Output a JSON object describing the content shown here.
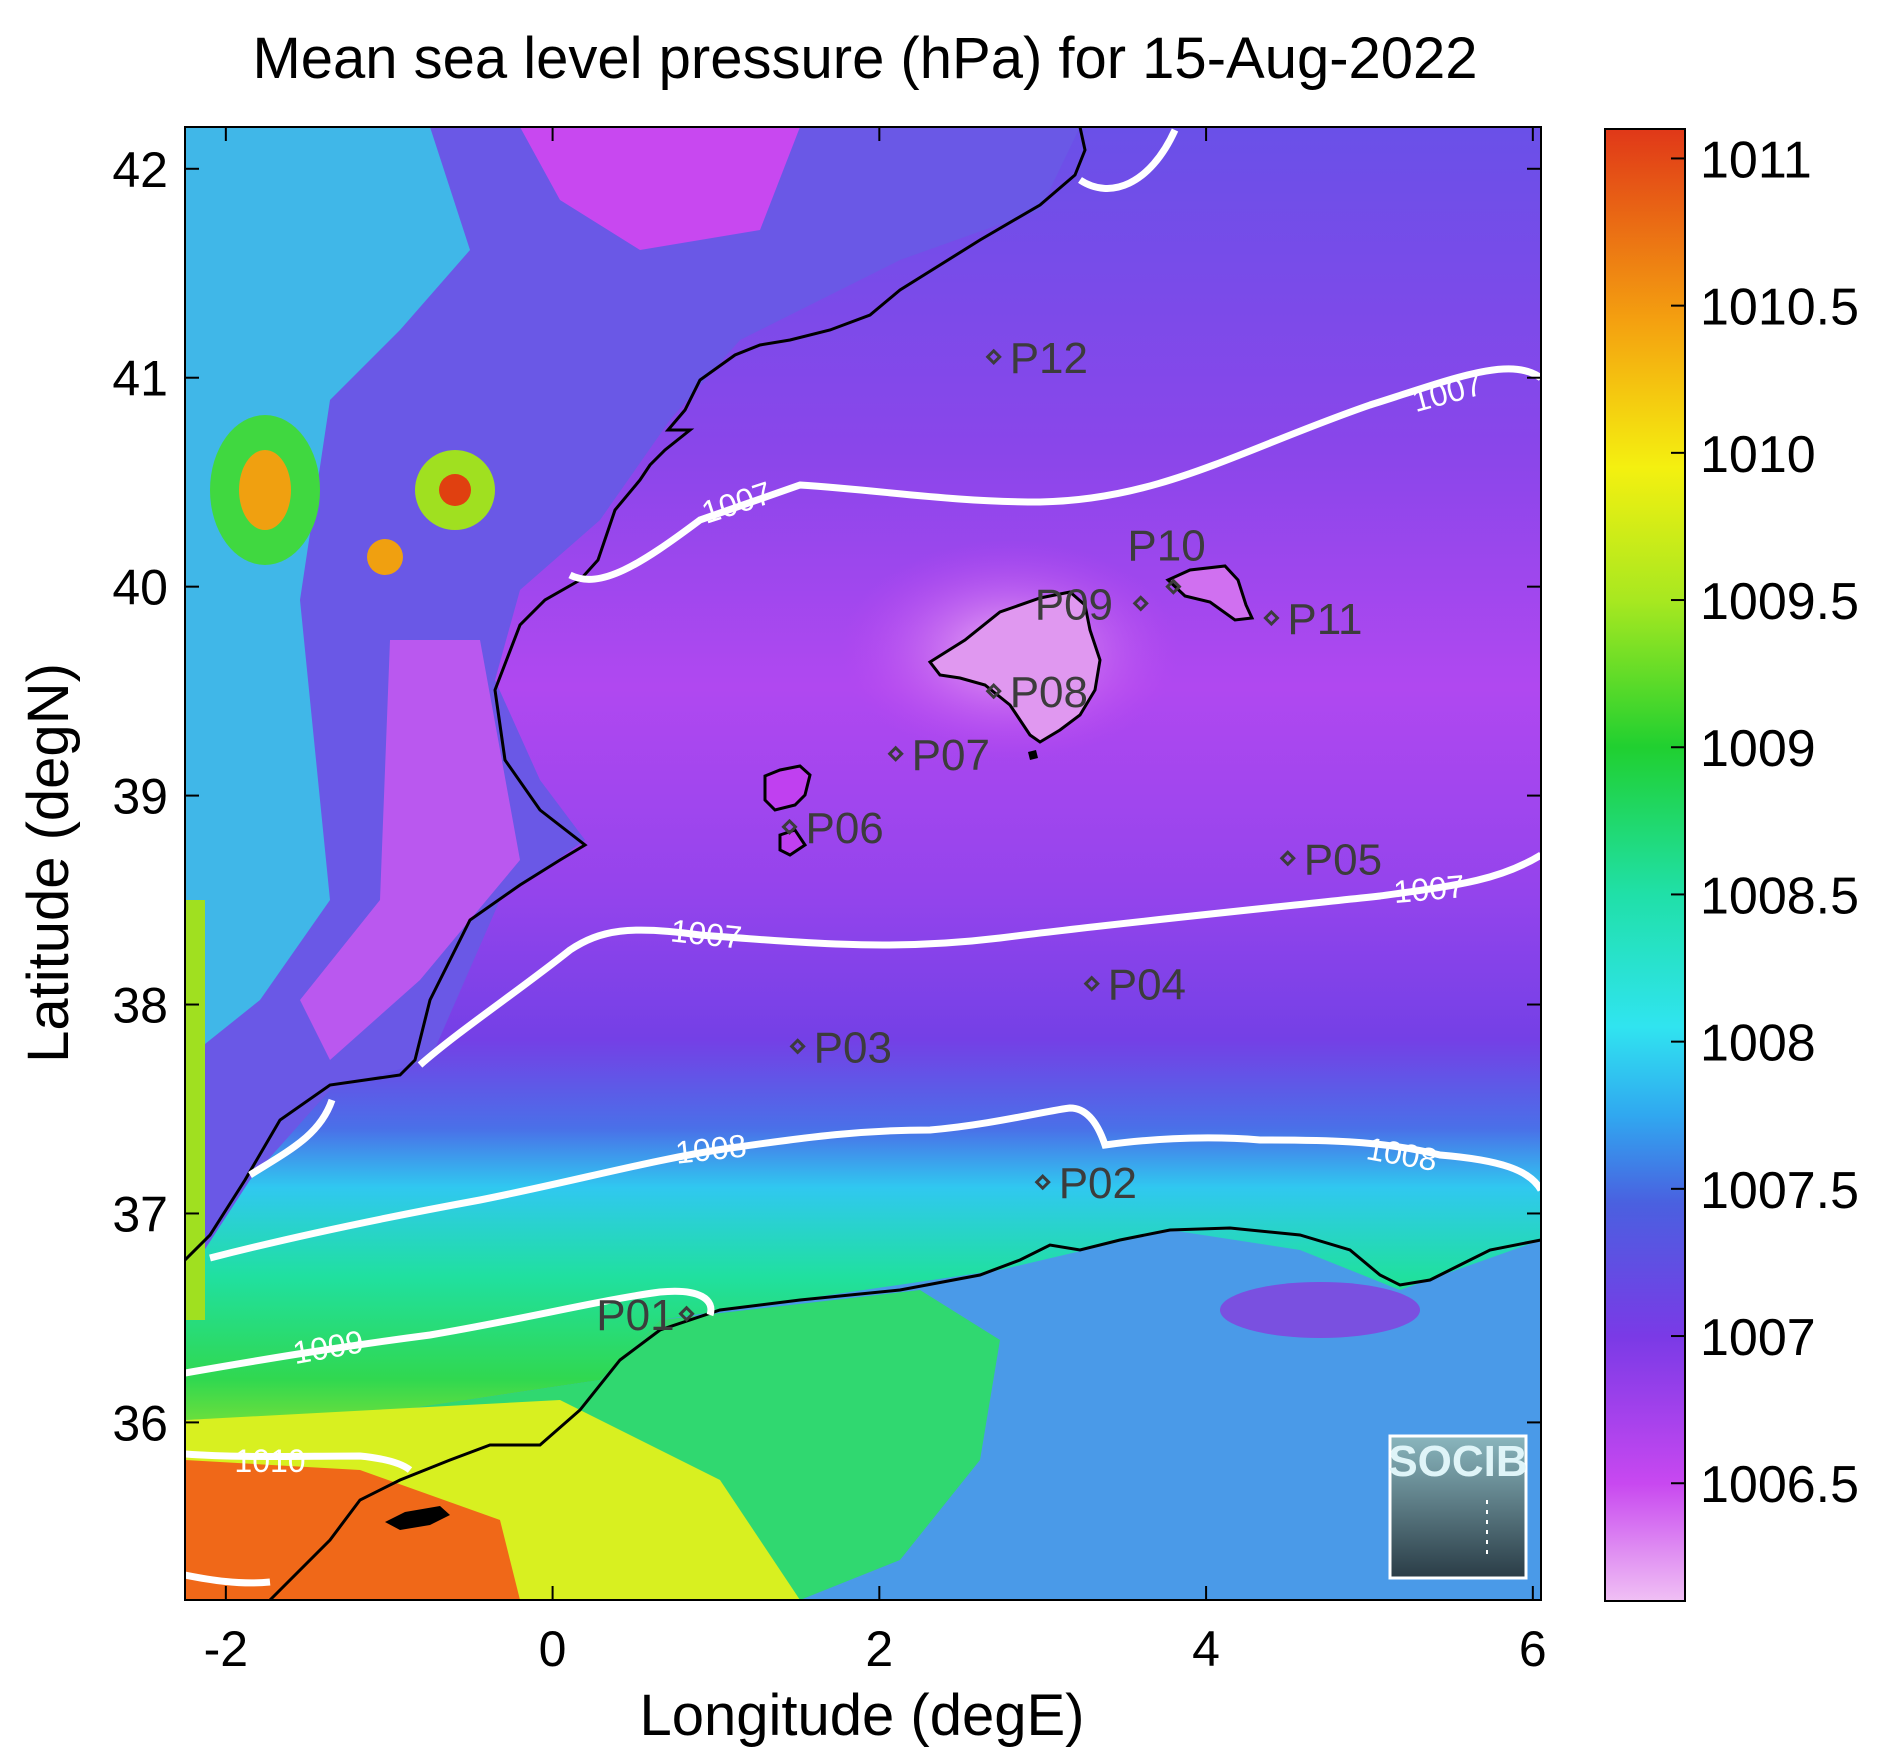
{
  "title": "Mean sea level pressure (hPa) for 15-Aug-2022",
  "x_axis": {
    "label": "Longitude (degE)",
    "range": [
      -2.25,
      6.05
    ],
    "ticks": [
      -2,
      0,
      2,
      4,
      6
    ],
    "tick_labels": [
      "-2",
      "0",
      "2",
      "4",
      "6"
    ]
  },
  "y_axis": {
    "label": "Latitude (degN)",
    "range": [
      35.15,
      42.2
    ],
    "ticks": [
      36,
      37,
      38,
      39,
      40,
      41,
      42
    ],
    "tick_labels": [
      "36",
      "37",
      "38",
      "39",
      "40",
      "41",
      "42"
    ]
  },
  "colorbar": {
    "range": [
      1006.1,
      1011.1
    ],
    "ticks": [
      1006.5,
      1007,
      1007.5,
      1008,
      1008.5,
      1009,
      1009.5,
      1010,
      1010.5,
      1011
    ],
    "tick_labels": [
      "1006.5",
      "1007",
      "1007.5",
      "1008",
      "1008.5",
      "1009",
      "1009.5",
      "1010",
      "1010.5",
      "1011"
    ],
    "colors": [
      "#f0b8f0",
      "#c040f0",
      "#7040e0",
      "#3080e8",
      "#30e0f0",
      "#20e0a0",
      "#20d030",
      "#a0e820",
      "#f0f010",
      "#f0a010",
      "#f04010",
      "#e03020"
    ]
  },
  "stations": [
    {
      "name": "P01",
      "lon": 0.82,
      "lat": 36.52
    },
    {
      "name": "P02",
      "lon": 3.0,
      "lat": 37.15
    },
    {
      "name": "P03",
      "lon": 1.5,
      "lat": 37.8
    },
    {
      "name": "P04",
      "lon": 3.3,
      "lat": 38.1
    },
    {
      "name": "P05",
      "lon": 4.5,
      "lat": 38.7
    },
    {
      "name": "P06",
      "lon": 1.45,
      "lat": 38.85
    },
    {
      "name": "P07",
      "lon": 2.1,
      "lat": 39.2
    },
    {
      "name": "P08",
      "lon": 2.7,
      "lat": 39.5
    },
    {
      "name": "P09",
      "lon": 3.6,
      "lat": 39.92
    },
    {
      "name": "P10",
      "lon": 3.8,
      "lat": 40.0
    },
    {
      "name": "P11",
      "lon": 4.4,
      "lat": 39.85
    },
    {
      "name": "P12",
      "lon": 2.7,
      "lat": 41.1
    }
  ],
  "contour_labels": [
    "1007",
    "1007",
    "1007",
    "1007",
    "1008",
    "1008",
    "1009",
    "1010"
  ],
  "chart_data": {
    "type": "heatmap",
    "title": "Mean sea level pressure (hPa) for 15-Aug-2022",
    "xlabel": "Longitude (degE)",
    "ylabel": "Latitude (degN)",
    "xlim": [
      -2.25,
      6.05
    ],
    "ylim": [
      35.15,
      42.2
    ],
    "zlim": [
      1006.1,
      1011.1
    ],
    "contour_levels": [
      1007,
      1008,
      1009,
      1010
    ]
  },
  "logo": {
    "text": "SOCIB"
  }
}
